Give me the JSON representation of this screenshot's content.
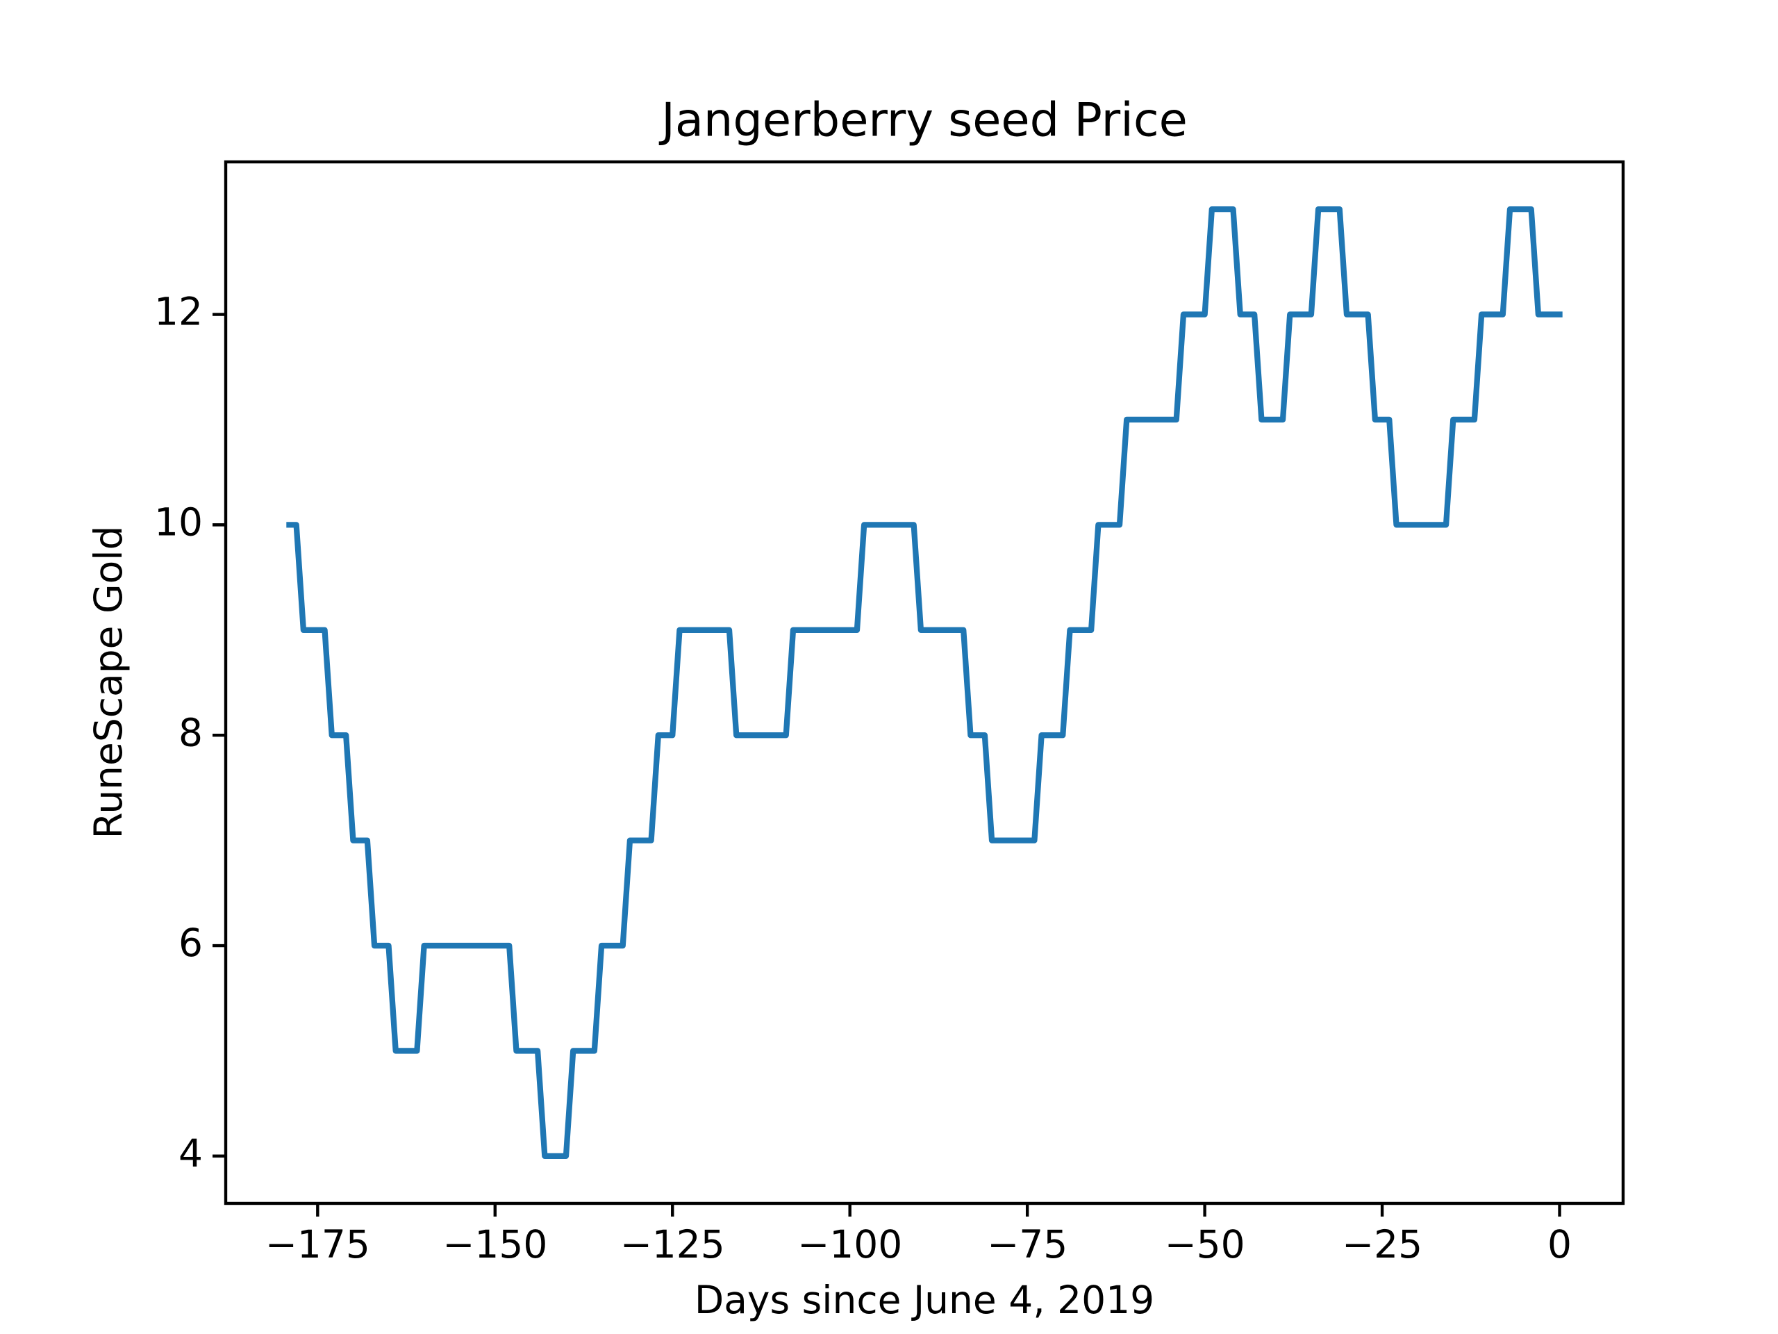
{
  "chart_data": {
    "type": "line",
    "title": "Jangerberry seed Price",
    "x_label": "Days since June 4, 2019",
    "y_label": "RuneScape Gold",
    "color": "#1f77b4",
    "x": [
      -179,
      -178,
      -177,
      -176,
      -175,
      -174,
      -173,
      -172,
      -171,
      -170,
      -169,
      -168,
      -167,
      -166,
      -165,
      -164,
      -163,
      -162,
      -161,
      -160,
      -159,
      -158,
      -157,
      -156,
      -155,
      -154,
      -153,
      -152,
      -151,
      -150,
      -149,
      -148,
      -147,
      -146,
      -145,
      -144,
      -143,
      -142,
      -141,
      -140,
      -139,
      -138,
      -137,
      -136,
      -135,
      -134,
      -133,
      -132,
      -131,
      -130,
      -129,
      -128,
      -127,
      -126,
      -125,
      -124,
      -123,
      -122,
      -121,
      -120,
      -119,
      -118,
      -117,
      -116,
      -115,
      -114,
      -113,
      -112,
      -111,
      -110,
      -109,
      -108,
      -107,
      -106,
      -105,
      -104,
      -103,
      -102,
      -101,
      -100,
      -99,
      -98,
      -97,
      -96,
      -95,
      -94,
      -93,
      -92,
      -91,
      -90,
      -89,
      -88,
      -87,
      -86,
      -85,
      -84,
      -83,
      -82,
      -81,
      -80,
      -79,
      -78,
      -77,
      -76,
      -75,
      -74,
      -73,
      -72,
      -71,
      -70,
      -69,
      -68,
      -67,
      -66,
      -65,
      -64,
      -63,
      -62,
      -61,
      -60,
      -59,
      -58,
      -57,
      -56,
      -55,
      -54,
      -53,
      -52,
      -51,
      -50,
      -49,
      -48,
      -47,
      -46,
      -45,
      -44,
      -43,
      -42,
      -41,
      -40,
      -39,
      -38,
      -37,
      -36,
      -35,
      -34,
      -33,
      -32,
      -31,
      -30,
      -29,
      -28,
      -27,
      -26,
      -25,
      -24,
      -23,
      -22,
      -21,
      -20,
      -19,
      -18,
      -17,
      -16,
      -15,
      -14,
      -13,
      -12,
      -11,
      -10,
      -9,
      -8,
      -7,
      -6,
      -5,
      -4,
      -3,
      -2,
      -1,
      0
    ],
    "values": [
      10,
      10,
      9,
      9,
      9,
      9,
      8,
      8,
      8,
      7,
      7,
      7,
      6,
      6,
      6,
      5,
      5,
      5,
      5,
      6,
      6,
      6,
      6,
      6,
      6,
      6,
      6,
      6,
      6,
      6,
      6,
      6,
      5,
      5,
      5,
      5,
      4,
      4,
      4,
      4,
      5,
      5,
      5,
      5,
      6,
      6,
      6,
      6,
      7,
      7,
      7,
      7,
      8,
      8,
      8,
      9,
      9,
      9,
      9,
      9,
      9,
      9,
      9,
      8,
      8,
      8,
      8,
      8,
      8,
      8,
      8,
      9,
      9,
      9,
      9,
      9,
      9,
      9,
      9,
      9,
      9,
      10,
      10,
      10,
      10,
      10,
      10,
      10,
      10,
      9,
      9,
      9,
      9,
      9,
      9,
      9,
      8,
      8,
      8,
      7,
      7,
      7,
      7,
      7,
      7,
      7,
      8,
      8,
      8,
      8,
      9,
      9,
      9,
      9,
      10,
      10,
      10,
      10,
      11,
      11,
      11,
      11,
      11,
      11,
      11,
      11,
      12,
      12,
      12,
      12,
      13,
      13,
      13,
      13,
      12,
      12,
      12,
      11,
      11,
      11,
      11,
      12,
      12,
      12,
      12,
      13,
      13,
      13,
      13,
      12,
      12,
      12,
      12,
      11,
      11,
      11,
      10,
      10,
      10,
      10,
      10,
      10,
      10,
      10,
      11,
      11,
      11,
      11,
      12,
      12,
      12,
      12,
      13,
      13,
      13,
      13,
      12,
      12,
      12,
      12
    ],
    "xlim": [
      -187.95,
      8.95
    ],
    "ylim": [
      3.55,
      13.45
    ],
    "xticks": [
      {
        "value": -175,
        "label": "−175"
      },
      {
        "value": -150,
        "label": "−150"
      },
      {
        "value": -125,
        "label": "−125"
      },
      {
        "value": -100,
        "label": "−100"
      },
      {
        "value": -75,
        "label": "−75"
      },
      {
        "value": -50,
        "label": "−50"
      },
      {
        "value": -25,
        "label": "−25"
      },
      0
    ],
    "yticks": [
      4,
      6,
      8,
      10,
      12
    ]
  }
}
